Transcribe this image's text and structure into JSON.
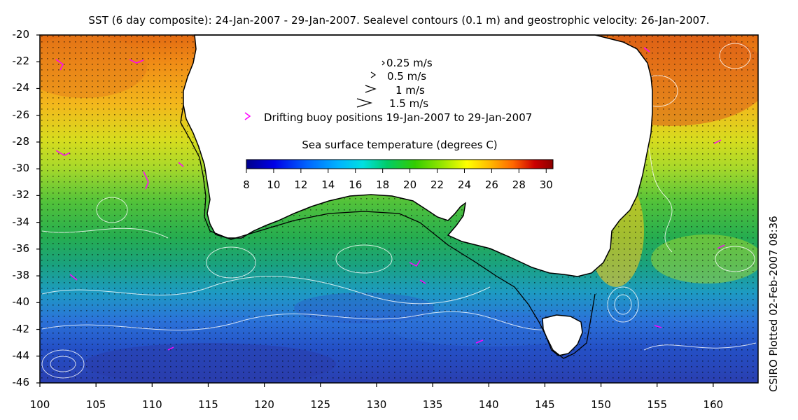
{
  "title": "SST (6 day composite): 24-Jan-2007 - 29-Jan-2007. Sealevel contours (0.1 m) and geostrophic velocity: 26-Jan-2007.",
  "side_credit": "CSIRO Plotted 02-Feb-2007 08:36",
  "axes": {
    "x_ticks": [
      "100",
      "105",
      "110",
      "115",
      "120",
      "125",
      "130",
      "135",
      "140",
      "145",
      "150",
      "155",
      "160"
    ],
    "y_ticks": [
      "-20",
      "-22",
      "-24",
      "-26",
      "-28",
      "-30",
      "-32",
      "-34",
      "-36",
      "-38",
      "-40",
      "-42",
      "-44",
      "-46"
    ],
    "x_range": [
      100,
      164
    ],
    "y_range": [
      -46,
      -20
    ]
  },
  "legend": {
    "velocity_scale": [
      {
        "label": "0.25 m/s"
      },
      {
        "label": "0.5 m/s"
      },
      {
        "label": "1 m/s"
      },
      {
        "label": "1.5 m/s"
      }
    ],
    "buoy_label": "Drifting buoy positions 19-Jan-2007 to 29-Jan-2007",
    "buoy_color": "#ff00ff"
  },
  "colorbar": {
    "title": "Sea surface temperature (degrees C)",
    "ticks": [
      "8",
      "10",
      "12",
      "14",
      "16",
      "18",
      "20",
      "22",
      "24",
      "26",
      "28",
      "30"
    ],
    "range": [
      8,
      30.5
    ],
    "colors": [
      "#00008b",
      "#0000e6",
      "#0066ff",
      "#00b3ff",
      "#00e0e0",
      "#00cc66",
      "#33cc00",
      "#99e600",
      "#ffff00",
      "#ffb300",
      "#ff6600",
      "#cc0000",
      "#8b0000"
    ]
  },
  "map": {
    "land_color": "#ffffff",
    "contour_color": "#ffffff",
    "vector_color": "#000000"
  }
}
